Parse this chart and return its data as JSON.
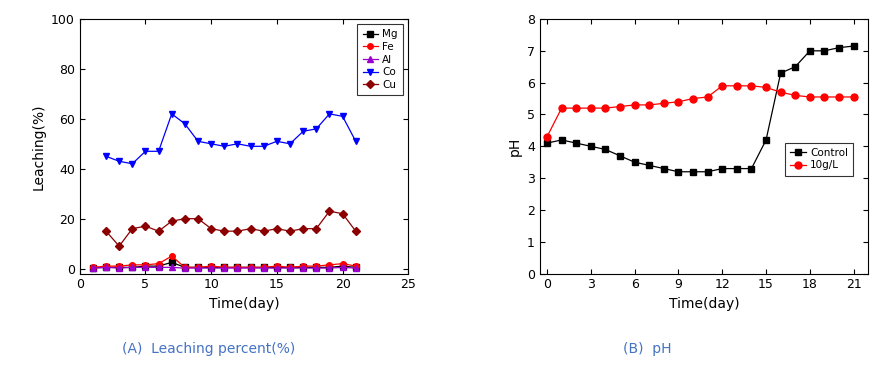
{
  "chart_A": {
    "xlabel": "Time(day)",
    "ylabel": "Leaching(%)",
    "xlim": [
      0,
      24
    ],
    "ylim": [
      -2,
      100
    ],
    "xticks": [
      0,
      5,
      10,
      15,
      20,
      25
    ],
    "yticks": [
      0,
      20,
      40,
      60,
      80,
      100
    ],
    "series": {
      "Mg": {
        "color": "#000000",
        "marker": "s",
        "markersize": 4,
        "x": [
          1,
          2,
          3,
          4,
          5,
          6,
          7,
          8,
          9,
          10,
          11,
          12,
          13,
          14,
          15,
          16,
          17,
          18,
          19,
          20,
          21
        ],
        "y": [
          0.3,
          0.5,
          0.5,
          0.5,
          1.0,
          1.0,
          2.5,
          0.5,
          0.5,
          0.5,
          0.5,
          0.5,
          0.5,
          0.5,
          0.5,
          0.5,
          0.5,
          0.5,
          0.5,
          1.0,
          0.5
        ]
      },
      "Fe": {
        "color": "#ff0000",
        "marker": "o",
        "markersize": 4,
        "x": [
          1,
          2,
          3,
          4,
          5,
          6,
          7,
          8,
          9,
          10,
          11,
          12,
          13,
          14,
          15,
          16,
          17,
          18,
          19,
          20,
          21
        ],
        "y": [
          0.5,
          1.0,
          1.0,
          1.5,
          1.5,
          2.0,
          5.0,
          0.5,
          0.5,
          1.0,
          0.5,
          0.5,
          0.5,
          0.5,
          1.0,
          0.5,
          1.0,
          1.0,
          1.5,
          2.0,
          1.0
        ]
      },
      "Al": {
        "color": "#9900cc",
        "marker": "^",
        "markersize": 4,
        "x": [
          1,
          2,
          3,
          4,
          5,
          6,
          7,
          8,
          9,
          10,
          11,
          12,
          13,
          14,
          15,
          16,
          17,
          18,
          19,
          20,
          21
        ],
        "y": [
          0.2,
          0.5,
          0.2,
          0.5,
          0.5,
          0.5,
          0.5,
          0.2,
          0.2,
          0.2,
          0.2,
          0.2,
          0.2,
          0.2,
          0.2,
          0.2,
          0.2,
          0.2,
          0.2,
          0.5,
          0.2
        ]
      },
      "Co": {
        "color": "#0000ff",
        "marker": "v",
        "markersize": 5,
        "x": [
          2,
          3,
          4,
          5,
          6,
          7,
          8,
          9,
          10,
          11,
          12,
          13,
          14,
          15,
          16,
          17,
          18,
          19,
          20,
          21
        ],
        "y": [
          45,
          43,
          42,
          47,
          47,
          62,
          58,
          51,
          50,
          49,
          50,
          49,
          49,
          51,
          50,
          55,
          56,
          62,
          61,
          51
        ]
      },
      "Cu": {
        "color": "#8B0000",
        "marker": "D",
        "markersize": 4,
        "x": [
          2,
          3,
          4,
          5,
          6,
          7,
          8,
          9,
          10,
          11,
          12,
          13,
          14,
          15,
          16,
          17,
          18,
          19,
          20,
          21
        ],
        "y": [
          15,
          9,
          16,
          17,
          15,
          19,
          20,
          20,
          16,
          15,
          15,
          16,
          15,
          16,
          15,
          16,
          16,
          23,
          22,
          15
        ]
      }
    }
  },
  "chart_B": {
    "xlabel": "Time(day)",
    "ylabel": "pH",
    "xlim": [
      -0.5,
      22
    ],
    "ylim": [
      0,
      8
    ],
    "xticks": [
      0,
      3,
      6,
      9,
      12,
      15,
      18,
      21
    ],
    "yticks": [
      0,
      1,
      2,
      3,
      4,
      5,
      6,
      7,
      8
    ],
    "series": {
      "Control": {
        "color": "#000000",
        "marker": "s",
        "markersize": 4,
        "x": [
          0,
          1,
          2,
          3,
          4,
          5,
          6,
          7,
          8,
          9,
          10,
          11,
          12,
          13,
          14,
          15,
          16,
          17,
          18,
          19,
          20,
          21
        ],
        "y": [
          4.1,
          4.2,
          4.1,
          4.0,
          3.9,
          3.7,
          3.5,
          3.4,
          3.3,
          3.2,
          3.2,
          3.2,
          3.3,
          3.3,
          3.3,
          4.2,
          6.3,
          6.5,
          7.0,
          7.0,
          7.1,
          7.15
        ]
      },
      "10g/L": {
        "color": "#ff0000",
        "marker": "o",
        "markersize": 5,
        "x": [
          0,
          1,
          2,
          3,
          4,
          5,
          6,
          7,
          8,
          9,
          10,
          11,
          12,
          13,
          14,
          15,
          16,
          17,
          18,
          19,
          20,
          21
        ],
        "y": [
          4.3,
          5.2,
          5.2,
          5.2,
          5.2,
          5.25,
          5.3,
          5.3,
          5.35,
          5.4,
          5.5,
          5.55,
          5.9,
          5.9,
          5.9,
          5.85,
          5.7,
          5.6,
          5.55,
          5.55,
          5.55,
          5.55
        ]
      }
    }
  },
  "caption_A": "(A)  Leaching percent(%)",
  "caption_B": "(B)  pH",
  "caption_color": "#4472c4",
  "caption_fontsize": 10
}
